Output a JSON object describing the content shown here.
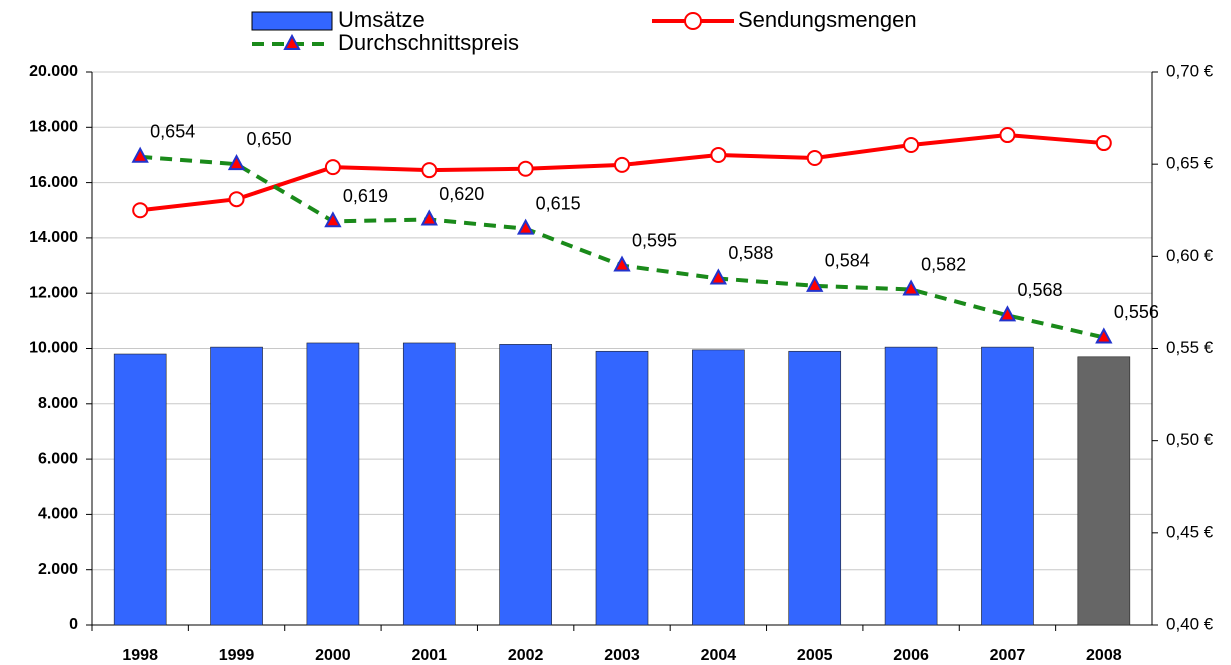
{
  "chart_data": {
    "type": "bar",
    "categories": [
      "1998",
      "1999",
      "2000",
      "2001",
      "2002",
      "2003",
      "2004",
      "2005",
      "2006",
      "2007",
      "2008"
    ],
    "series": [
      {
        "name": "Umsätze",
        "type": "bar",
        "color": "#3366ff",
        "colors": [
          "#3366ff",
          "#3366ff",
          "#3366ff",
          "#3366ff",
          "#3366ff",
          "#3366ff",
          "#3366ff",
          "#3366ff",
          "#3366ff",
          "#3366ff",
          "#666666"
        ],
        "values": [
          9800,
          10050,
          10200,
          10200,
          10150,
          9900,
          9950,
          9900,
          10050,
          10050,
          9700
        ]
      },
      {
        "name": "Sendungsmengen",
        "type": "line",
        "color": "#ff0000",
        "values": [
          15000,
          15400,
          16560,
          16450,
          16500,
          16640,
          17000,
          16890,
          17360,
          17720,
          17430
        ]
      },
      {
        "name": "Durchschnittspreis",
        "type": "line",
        "axis": "y2",
        "color": "#1a8a1a",
        "values": [
          0.654,
          0.65,
          0.619,
          0.62,
          0.615,
          0.595,
          0.588,
          0.584,
          0.582,
          0.568,
          0.556
        ],
        "value_labels": [
          "0,654",
          "0,650",
          "0,619",
          "0,620",
          "0,615",
          "0,595",
          "0,588",
          "0,584",
          "0,582",
          "0,568",
          "0,556"
        ]
      }
    ],
    "ylim": [
      0,
      20000
    ],
    "yticks": [
      0,
      {
        "value": 2000,
        "label": "2.000"
      },
      {
        "value": 4000,
        "label": "4.000"
      },
      {
        "value": 6000,
        "label": "6.000"
      },
      {
        "value": 8000,
        "label": "8.000"
      },
      {
        "value": 10000,
        "label": "10.000"
      },
      {
        "value": 12000,
        "label": "12.000"
      },
      {
        "value": 14000,
        "label": "14.000"
      },
      {
        "value": 16000,
        "label": "16.000"
      },
      {
        "value": 18000,
        "label": "18.000"
      },
      {
        "value": 20000,
        "label": "20.000"
      }
    ],
    "y2lim": [
      0.4,
      0.7
    ],
    "y2ticks": [
      {
        "value": 0.4,
        "label": "0,40 €"
      },
      {
        "value": 0.45,
        "label": "0,45 €"
      },
      {
        "value": 0.5,
        "label": "0,50 €"
      },
      {
        "value": 0.55,
        "label": "0,55 €"
      },
      {
        "value": 0.6,
        "label": "0,60 €"
      },
      {
        "value": 0.65,
        "label": "0,65 €"
      },
      {
        "value": 0.7,
        "label": "0,70 €"
      }
    ],
    "grid": true
  }
}
